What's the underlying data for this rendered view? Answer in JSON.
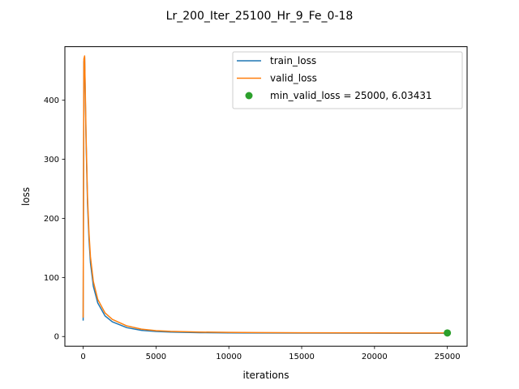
{
  "chart_data": {
    "type": "line",
    "title": "Lr_200_Iter_25100_Hr_9_Fe_0-18",
    "xlabel": "iterations",
    "ylabel": "loss",
    "xlim": [
      -1255,
      26355
    ],
    "ylim": [
      -16.4,
      490.7
    ],
    "xticks": [
      0,
      5000,
      10000,
      15000,
      20000,
      25000
    ],
    "xtick_labels": [
      "0",
      "5000",
      "10000",
      "15000",
      "20000",
      "25000"
    ],
    "yticks": [
      0,
      100,
      200,
      300,
      400
    ],
    "ytick_labels": [
      "0",
      "100",
      "200",
      "300",
      "400"
    ],
    "grid": false,
    "legend_position": "top-right",
    "series": [
      {
        "name": "train_loss",
        "color": "#1f77b4",
        "x": [
          0,
          50,
          100,
          150,
          200,
          300,
          400,
          500,
          700,
          1000,
          1500,
          2000,
          3000,
          4000,
          5000,
          6000,
          8000,
          10000,
          12000,
          15000,
          20000,
          25000
        ],
        "y": [
          27,
          465,
          473,
          400,
          330,
          225,
          165,
          125,
          85,
          57,
          35,
          25,
          15,
          10.5,
          8.5,
          7.5,
          6.6,
          6.2,
          6.0,
          5.8,
          5.6,
          5.5
        ]
      },
      {
        "name": "valid_loss",
        "color": "#ff7f0e",
        "x": [
          0,
          50,
          100,
          150,
          200,
          300,
          400,
          500,
          700,
          1000,
          1500,
          2000,
          3000,
          4000,
          5000,
          6000,
          8000,
          10000,
          12000,
          15000,
          20000,
          25000
        ],
        "y": [
          32,
          470,
          475,
          410,
          340,
          235,
          175,
          135,
          93,
          63,
          40,
          29,
          18,
          12.5,
          10,
          8.8,
          7.6,
          7.0,
          6.7,
          6.4,
          6.1,
          6.03
        ]
      }
    ],
    "points": [
      {
        "name": "min_valid_loss = 25000, 6.03431",
        "color": "#2ca02c",
        "x": 25000,
        "y": 6.03431
      }
    ]
  }
}
